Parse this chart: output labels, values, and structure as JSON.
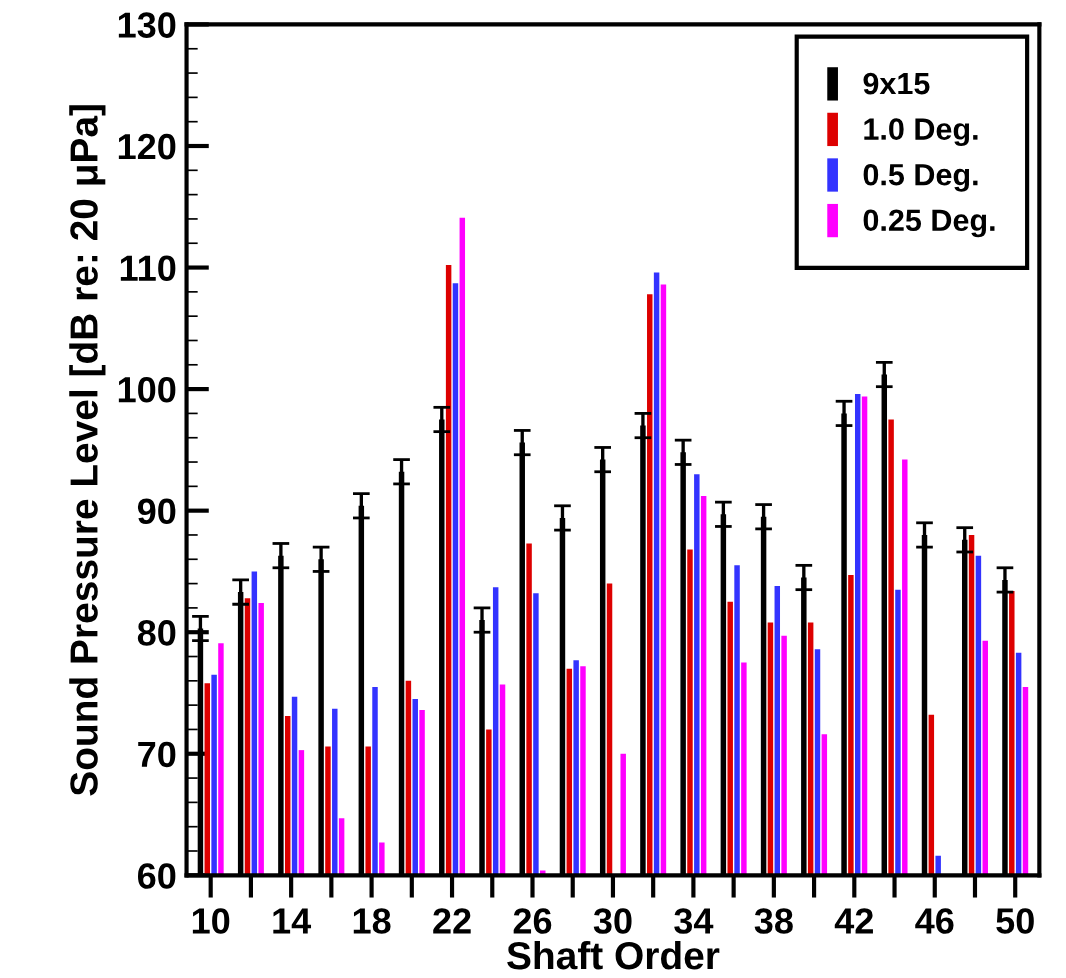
{
  "chart_data": {
    "type": "bar",
    "xlabel": "Shaft Order",
    "ylabel": "Sound Pressure Level [dB re: 20 μPa]",
    "categories": [
      "10",
      null,
      "14",
      null,
      "18",
      null,
      "22",
      null,
      "26",
      null,
      "30",
      null,
      "34",
      null,
      "38",
      null,
      "42",
      null,
      "46",
      null,
      "50"
    ],
    "series": [
      {
        "name": "9x15",
        "color": "#000000",
        "values": [
          80.3,
          83.3,
          86.3,
          86,
          90.4,
          93.2,
          97.5,
          81,
          95.6,
          89.4,
          94.2,
          97,
          94.8,
          89.7,
          89.5,
          84.5,
          98,
          101.2,
          88,
          87.6,
          84.3
        ],
        "errors": [
          1,
          1,
          1,
          1,
          1,
          1,
          1,
          1,
          1,
          1,
          1,
          1,
          1,
          1,
          1,
          1,
          1,
          1,
          1,
          1,
          1
        ]
      },
      {
        "name": "1.0 Deg.",
        "color": "#dd0000",
        "values": [
          75.8,
          82.8,
          73.1,
          70.6,
          70.6,
          76,
          110.2,
          72,
          87.3,
          77,
          84,
          107.8,
          86.8,
          82.5,
          80.8,
          80.8,
          84.7,
          97.5,
          73.2,
          88,
          83.4
        ]
      },
      {
        "name": "0.5 Deg.",
        "color": "#3333ff",
        "values": [
          76.5,
          85,
          74.7,
          73.7,
          75.5,
          74.5,
          108.7,
          83.7,
          83.2,
          77.7,
          null,
          109.6,
          93,
          85.5,
          83.8,
          78.6,
          99.6,
          83.5,
          61.6,
          86.3,
          78.3
        ]
      },
      {
        "name": "0.25 Deg.",
        "color": "#ff00ff",
        "values": [
          79.1,
          82.4,
          70.3,
          64.7,
          62.7,
          73.6,
          114.1,
          75.7,
          60.4,
          77.2,
          70,
          108.6,
          91.2,
          77.5,
          79.7,
          71.6,
          99.4,
          94.2,
          null,
          79.3,
          75.5
        ]
      }
    ],
    "ylim": [
      60,
      130
    ],
    "yticks": [
      60,
      {
        "value": 62,
        "label": null
      },
      {
        "value": 64,
        "label": null
      },
      {
        "value": 66,
        "label": null
      },
      {
        "value": 68,
        "label": null
      },
      70,
      {
        "value": 72,
        "label": null
      },
      {
        "value": 74,
        "label": null
      },
      {
        "value": 76,
        "label": null
      },
      {
        "value": 78,
        "label": null
      },
      80,
      {
        "value": 82,
        "label": null
      },
      {
        "value": 84,
        "label": null
      },
      {
        "value": 86,
        "label": null
      },
      {
        "value": 88,
        "label": null
      },
      90,
      {
        "value": 92,
        "label": null
      },
      {
        "value": 94,
        "label": null
      },
      {
        "value": 96,
        "label": null
      },
      {
        "value": 98,
        "label": null
      },
      100,
      {
        "value": 102,
        "label": null
      },
      {
        "value": 104,
        "label": null
      },
      {
        "value": 106,
        "label": null
      },
      {
        "value": 108,
        "label": null
      },
      110,
      {
        "value": 112,
        "label": null
      },
      {
        "value": 114,
        "label": null
      },
      {
        "value": 116,
        "label": null
      },
      {
        "value": 118,
        "label": null
      },
      120,
      {
        "value": 122,
        "label": null
      },
      {
        "value": 124,
        "label": null
      },
      {
        "value": 126,
        "label": null
      },
      {
        "value": 128,
        "label": null
      },
      130
    ],
    "legend": "top right",
    "grid": false
  }
}
